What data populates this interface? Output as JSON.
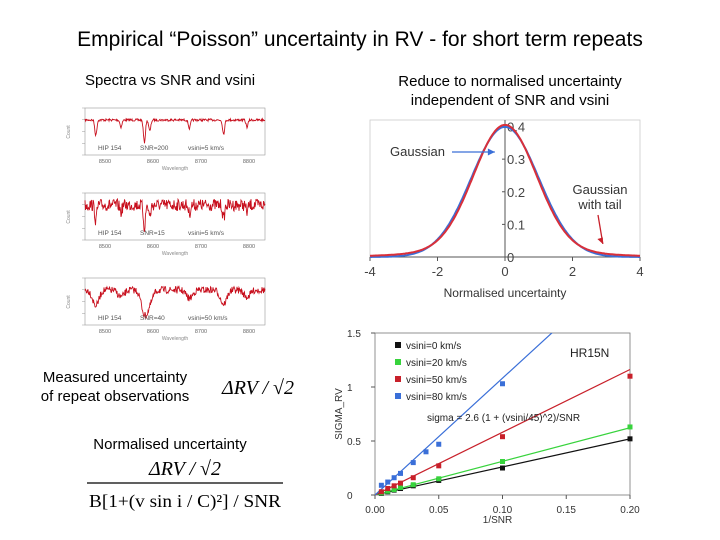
{
  "slide": {
    "title": "Empirical “Poisson” uncertainty in RV - for short term repeats",
    "left_subtitle": "Spectra vs SNR and vsini",
    "right_subtitle_line1": "Reduce to normalised uncertainty",
    "right_subtitle_line2": "independent of SNR and vsini",
    "measured_line1": "Measured uncertainty",
    "measured_line2": "of repeat observations",
    "normalised_label": "Normalised uncertainty",
    "formula_delta_rv": "ΔRV / √2",
    "formula_numerator": "ΔRV / √2",
    "formula_denominator": "B[1+(v sin i / C)²] / SNR"
  },
  "spectra_panels": [
    {
      "object": "HIP 154",
      "snr_label": "SNR=200",
      "vsini_label": "vsini=5 km/s",
      "xlabel": "Wavelength",
      "ticks": [
        "8500",
        "8600",
        "8700",
        "8800"
      ],
      "ylabel": "Count"
    },
    {
      "object": "HIP 154",
      "snr_label": "SNR=15",
      "vsini_label": "vsini=5 km/s",
      "xlabel": "Wavelength",
      "ticks": [
        "8500",
        "8600",
        "8700",
        "8800"
      ],
      "ylabel": "Count"
    },
    {
      "object": "HIP 154",
      "snr_label": "SNR=40",
      "vsini_label": "vsini=50 km/s",
      "xlabel": "Wavelength",
      "ticks": [
        "8500",
        "8600",
        "8700",
        "8800"
      ],
      "ylabel": "Count"
    }
  ],
  "chart_data": [
    {
      "type": "line",
      "title": "",
      "xlabel": "Normalised uncertainty",
      "ylabel": "",
      "xlim": [
        -4,
        4
      ],
      "ylim": [
        0,
        0.42
      ],
      "xticks": [
        -4,
        -2,
        0,
        2,
        4
      ],
      "yticks": [
        0,
        0.1,
        0.2,
        0.3,
        0.4
      ],
      "xtick_labels": [
        "-4",
        "-2",
        "0",
        "2",
        "4"
      ],
      "ytick_labels": [
        "0",
        "0.1",
        "0.2",
        "0.3",
        "0.4"
      ],
      "series": [
        {
          "name": "Gaussian",
          "color": "#3a6fd8",
          "kind": "gaussian",
          "sigma": 1.0,
          "peak": 0.3989
        },
        {
          "name": "Gaussian with tail",
          "color": "#d9303a",
          "kind": "gaussian+tail",
          "sigma": 0.93,
          "peak": 0.385,
          "tail_amplitude": 0.02,
          "tail_sigma": 2.2
        }
      ],
      "annotations": [
        {
          "text": "Gaussian"
        },
        {
          "text_line1": "Gaussian",
          "text_line2": "with tail"
        }
      ]
    },
    {
      "type": "scatter",
      "title": "HR15N",
      "xlabel": "1/SNR",
      "ylabel": "SIGMA_RV",
      "xlim": [
        0,
        0.2
      ],
      "ylim": [
        0,
        1.5
      ],
      "xticks": [
        0,
        0.05,
        0.1,
        0.15,
        0.2
      ],
      "yticks": [
        0,
        0.5,
        1,
        1.5
      ],
      "xtick_labels": [
        "0.00",
        "0.05",
        "0.10",
        "0.15",
        "0.20"
      ],
      "ytick_labels": [
        "0",
        "0.5",
        "1",
        "1.5"
      ],
      "fit_label": "sigma = 2.6 (1 + (vsini/45)^2)/SNR",
      "fit_coefficient": 2.6,
      "fit_vsini_scale": 45,
      "series": [
        {
          "name": "vsini=0 km/s",
          "vsini": 0,
          "color": "#111111",
          "x": [
            0.005,
            0.01,
            0.015,
            0.02,
            0.03,
            0.05,
            0.1,
            0.2
          ],
          "y": [
            0.015,
            0.03,
            0.045,
            0.06,
            0.085,
            0.135,
            0.25,
            0.52
          ]
        },
        {
          "name": "vsini=20 km/s",
          "vsini": 20,
          "color": "#37d33c",
          "x": [
            0.005,
            0.01,
            0.015,
            0.02,
            0.03,
            0.05,
            0.1,
            0.2
          ],
          "y": [
            0.02,
            0.035,
            0.05,
            0.07,
            0.095,
            0.15,
            0.31,
            0.63
          ]
        },
        {
          "name": "vsini=50 km/s",
          "vsini": 50,
          "color": "#c8202a",
          "x": [
            0.005,
            0.01,
            0.015,
            0.02,
            0.03,
            0.05,
            0.1,
            0.2
          ],
          "y": [
            0.03,
            0.06,
            0.085,
            0.11,
            0.16,
            0.27,
            0.54,
            1.1
          ]
        },
        {
          "name": "vsini=80 km/s",
          "vsini": 80,
          "color": "#3a6fd8",
          "x": [
            0.005,
            0.01,
            0.015,
            0.02,
            0.03,
            0.04,
            0.05,
            0.1
          ],
          "y": [
            0.09,
            0.12,
            0.16,
            0.2,
            0.3,
            0.4,
            0.47,
            1.03
          ]
        }
      ]
    }
  ]
}
